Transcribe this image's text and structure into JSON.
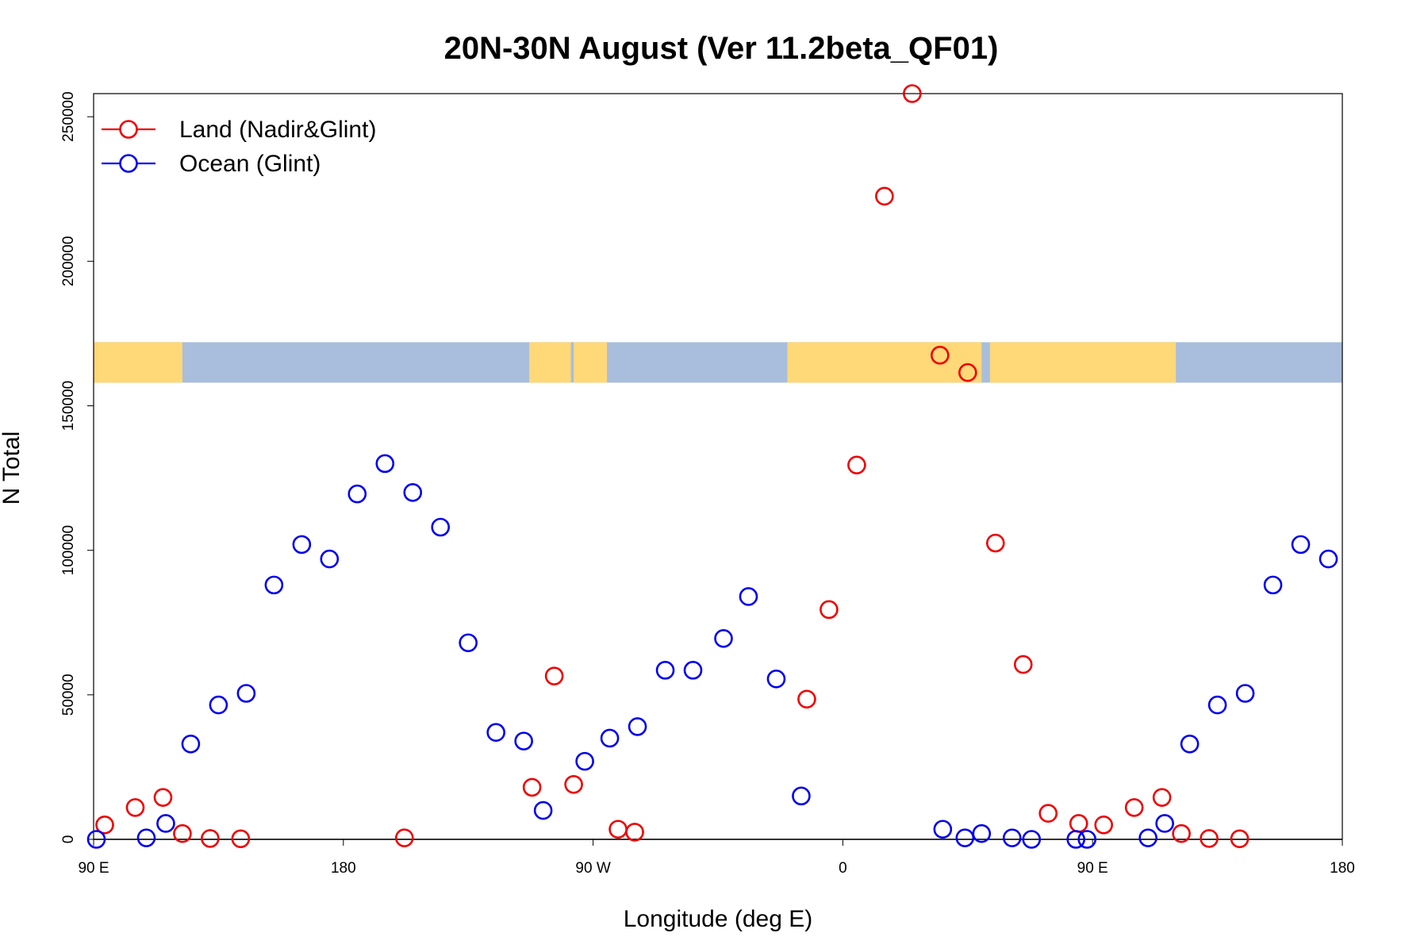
{
  "chart_data": {
    "type": "scatter",
    "title": "20N-30N August (Ver 11.2beta_QF01)",
    "xlabel": "Longitude (deg E)",
    "ylabel": "N Total",
    "xlim": [
      90,
      540
    ],
    "ylim": [
      0,
      258000
    ],
    "x_ticks": [
      {
        "value": 90,
        "label": "90 E"
      },
      {
        "value": 180,
        "label": "180"
      },
      {
        "value": 270,
        "label": "90 W"
      },
      {
        "value": 360,
        "label": "0"
      },
      {
        "value": 450,
        "label": "90 E"
      },
      {
        "value": 540,
        "label": "180"
      }
    ],
    "y_ticks": [
      {
        "value": 0,
        "label": "0"
      },
      {
        "value": 50000,
        "label": "50000"
      },
      {
        "value": 100000,
        "label": "100000"
      },
      {
        "value": 150000,
        "label": "150000"
      },
      {
        "value": 200000,
        "label": "200000"
      },
      {
        "value": 250000,
        "label": "250000"
      }
    ],
    "map_strip": {
      "description": "world map strip 20N-30N",
      "y_range": [
        158000,
        172000
      ],
      "land_x_ranges": [
        [
          90,
          122
        ],
        [
          247,
          262
        ],
        [
          263,
          275
        ],
        [
          340,
          410
        ],
        [
          413,
          480
        ]
      ],
      "land_color": "#ffd878",
      "ocean_color": "#a8bedc"
    },
    "legend": {
      "position": "top-left"
    },
    "series": [
      {
        "name": "Land (Nadir&Glint)",
        "color": "#ee0000",
        "points": [
          [
            94,
            5000
          ],
          [
            105,
            11000
          ],
          [
            115,
            14500
          ],
          [
            122,
            2000
          ],
          [
            132,
            300
          ],
          [
            143,
            200
          ],
          [
            202,
            500
          ],
          [
            248,
            18000
          ],
          [
            256,
            56500
          ],
          [
            263,
            19000
          ],
          [
            279,
            3500
          ],
          [
            285,
            2500
          ],
          [
            347,
            48500
          ],
          [
            355,
            79500
          ],
          [
            365,
            129500
          ],
          [
            375,
            222500
          ],
          [
            385,
            258000
          ],
          [
            395,
            167500
          ],
          [
            405,
            161500
          ],
          [
            415,
            102500
          ],
          [
            425,
            60500
          ],
          [
            434,
            9000
          ],
          [
            445,
            5500
          ],
          [
            454,
            5000
          ],
          [
            465,
            11000
          ],
          [
            475,
            14500
          ],
          [
            482,
            2000
          ],
          [
            492,
            300
          ],
          [
            503,
            200
          ]
        ]
      },
      {
        "name": "Ocean (Glint)",
        "color": "#0000ee",
        "points": [
          [
            91,
            0
          ],
          [
            109,
            500
          ],
          [
            116,
            5500
          ],
          [
            125,
            33000
          ],
          [
            135,
            46500
          ],
          [
            145,
            50500
          ],
          [
            155,
            88000
          ],
          [
            165,
            102000
          ],
          [
            175,
            97000
          ],
          [
            185,
            119500
          ],
          [
            195,
            130000
          ],
          [
            205,
            120000
          ],
          [
            215,
            108000
          ],
          [
            225,
            68000
          ],
          [
            235,
            37000
          ],
          [
            245,
            34000
          ],
          [
            252,
            10000
          ],
          [
            267,
            27000
          ],
          [
            276,
            35000
          ],
          [
            286,
            39000
          ],
          [
            296,
            58500
          ],
          [
            306,
            58500
          ],
          [
            317,
            69500
          ],
          [
            326,
            84000
          ],
          [
            336,
            55500
          ],
          [
            345,
            15000
          ],
          [
            396,
            3500
          ],
          [
            404,
            500
          ],
          [
            410,
            2000
          ],
          [
            421,
            500
          ],
          [
            428,
            0
          ],
          [
            444,
            0
          ],
          [
            448,
            0
          ],
          [
            470,
            500
          ],
          [
            476,
            5500
          ],
          [
            485,
            33000
          ],
          [
            495,
            46500
          ],
          [
            505,
            50500
          ],
          [
            515,
            88000
          ],
          [
            525,
            102000
          ],
          [
            535,
            97000
          ]
        ]
      }
    ]
  }
}
